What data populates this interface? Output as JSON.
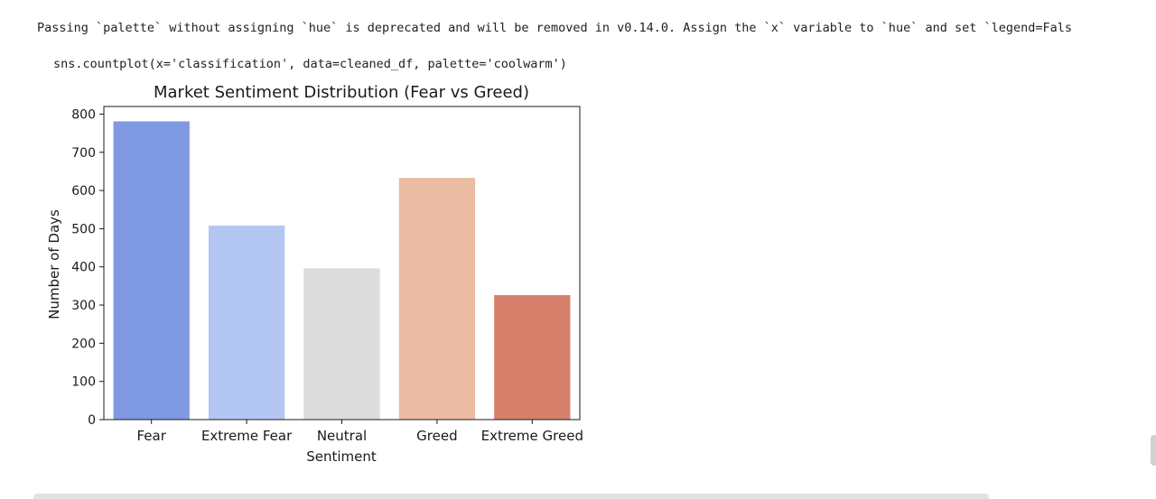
{
  "output": {
    "warning_text": "Passing `palette` without assigning `hue` is deprecated and will be removed in v0.14.0. Assign the `x` variable to `hue` and set `legend=Fals",
    "code_text": "sns.countplot(x='classification', data=cleaned_df, palette='coolwarm')"
  },
  "chart_data": {
    "type": "bar",
    "title": "Market Sentiment Distribution (Fear vs Greed)",
    "xlabel": "Sentiment",
    "ylabel": "Number of Days",
    "categories": [
      "Fear",
      "Extreme Fear",
      "Neutral",
      "Greed",
      "Extreme Greed"
    ],
    "values": [
      781,
      508,
      396,
      633,
      326
    ],
    "colors": [
      "#7f99e2",
      "#b4c7f2",
      "#dcdcdc",
      "#ecbba4",
      "#d6806c"
    ],
    "ylim": [
      0,
      820
    ],
    "yticks": [
      0,
      100,
      200,
      300,
      400,
      500,
      600,
      700,
      800
    ],
    "grid": false,
    "palette": "coolwarm"
  }
}
